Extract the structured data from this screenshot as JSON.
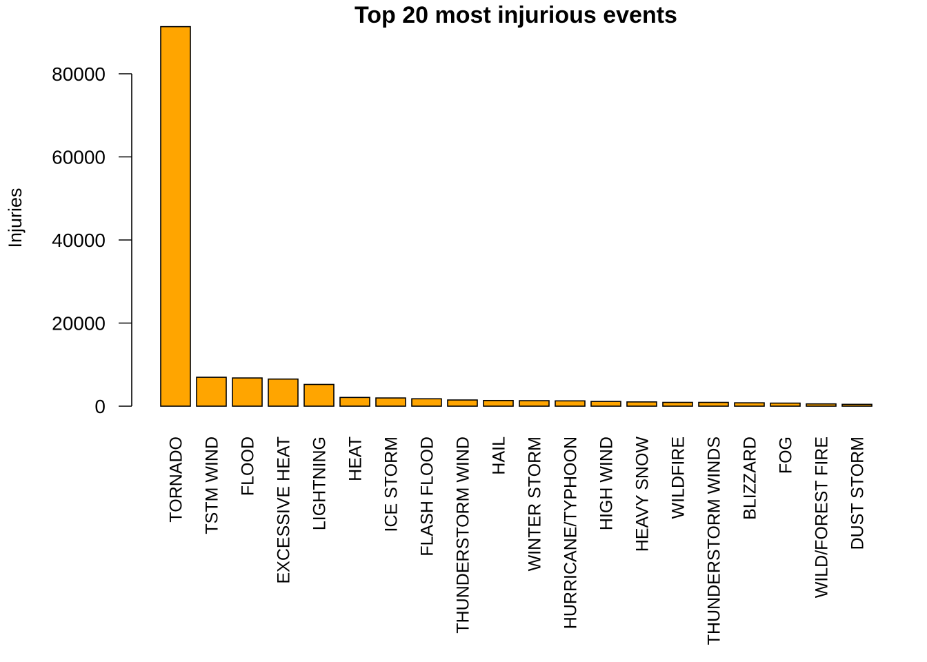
{
  "chart_data": {
    "type": "bar",
    "title": "Top 20 most injurious events",
    "xlabel": "",
    "ylabel": "Injuries",
    "ylim": [
      0,
      92000
    ],
    "yticks": [
      "0",
      "20000",
      "40000",
      "60000",
      "80000"
    ],
    "ytick_values": [
      0,
      20000,
      40000,
      60000,
      80000
    ],
    "bar_color": "#FFA500",
    "categories": [
      "TORNADO",
      "TSTM WIND",
      "FLOOD",
      "EXCESSIVE HEAT",
      "LIGHTNING",
      "HEAT",
      "ICE STORM",
      "FLASH FLOOD",
      "THUNDERSTORM WIND",
      "HAIL",
      "WINTER STORM",
      "HURRICANE/TYPHOON",
      "HIGH WIND",
      "HEAVY SNOW",
      "WILDFIRE",
      "THUNDERSTORM WINDS",
      "BLIZZARD",
      "FOG",
      "WILD/FOREST FIRE",
      "DUST STORM"
    ],
    "values": [
      91346,
      6957,
      6789,
      6525,
      5230,
      2100,
      1975,
      1777,
      1488,
      1361,
      1321,
      1275,
      1137,
      1021,
      911,
      908,
      805,
      734,
      545,
      440
    ]
  }
}
